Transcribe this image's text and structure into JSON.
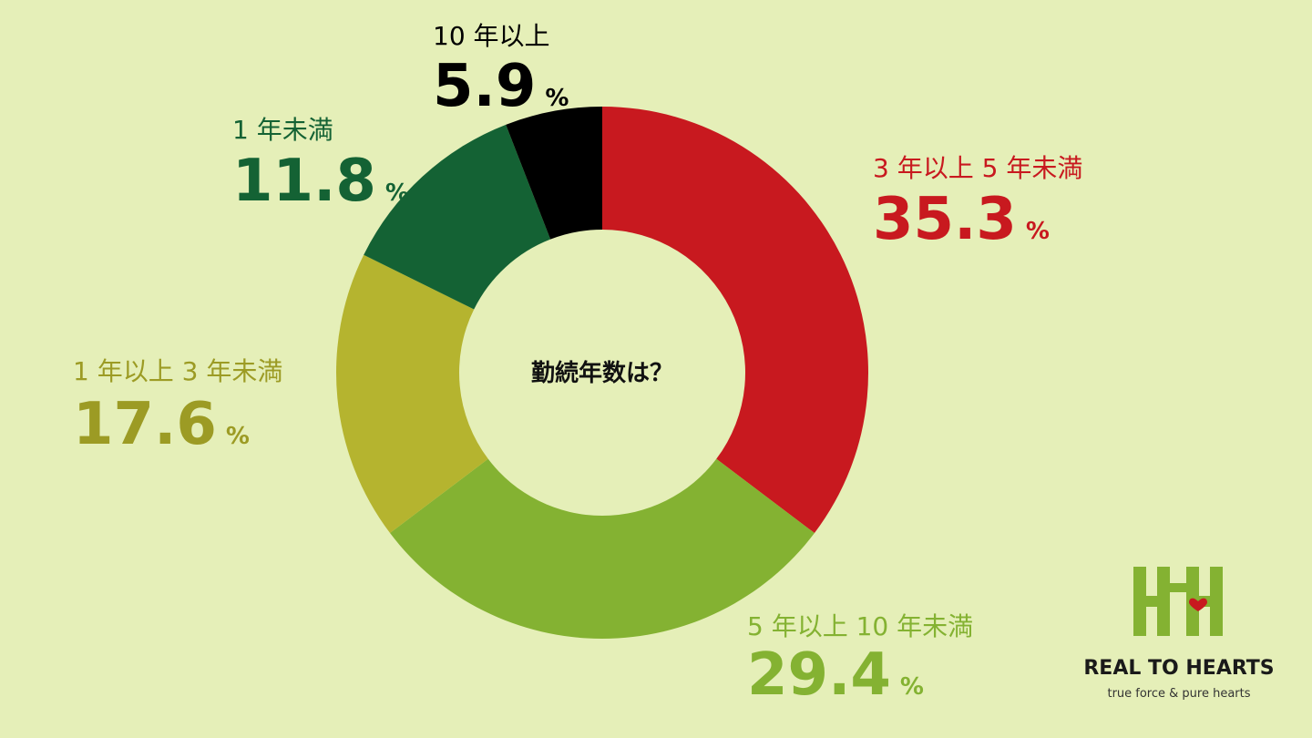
{
  "chart_data": {
    "type": "pie",
    "donut": true,
    "center_label": "勤続年数は？",
    "categories": [
      "3 年以上 5 年未満",
      "5 年以上 10 年未満",
      "1 年以上 3 年未満",
      "1 年未満",
      "10 年以上"
    ],
    "values": [
      35.3,
      29.4,
      17.6,
      11.8,
      5.9
    ],
    "value_suffix": "%",
    "colors": [
      "#c8191f",
      "#84b232",
      "#b5b42f",
      "#146234",
      "#000000"
    ]
  },
  "brand": {
    "name": "REAL TO HEARTS",
    "tagline": "true force & pure hearts"
  }
}
